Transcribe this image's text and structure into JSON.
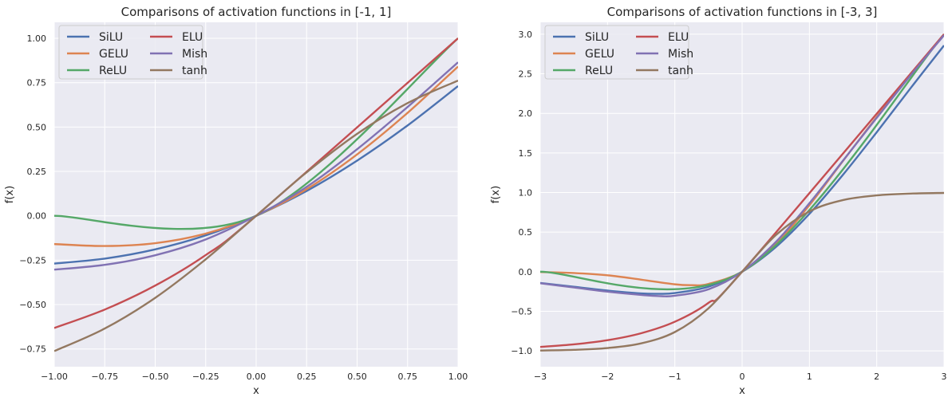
{
  "chart_data": [
    {
      "type": "line",
      "title": "Comparisons of activation functions in [-1, 1]",
      "xlabel": "x",
      "ylabel": "f(x)",
      "xlim": [
        -1,
        1
      ],
      "ylim": [
        -0.85,
        1.09
      ],
      "xticks": [
        "−1.00",
        "−0.75",
        "−0.50",
        "−0.25",
        "0.00",
        "0.25",
        "0.50",
        "0.75",
        "1.00"
      ],
      "yticks": [
        "−0.75",
        "−0.50",
        "−0.25",
        "0.00",
        "0.25",
        "0.50",
        "0.75",
        "1.00"
      ],
      "grid": true,
      "legend_position": "top-left",
      "series": [
        {
          "name": "SiLU",
          "color": "#4c72b0",
          "x": [
            -1,
            -0.75,
            -0.5,
            -0.25,
            0,
            0.25,
            0.5,
            0.75,
            1
          ],
          "y": [
            -0.269,
            -0.241,
            -0.189,
            -0.11,
            0,
            0.14,
            0.311,
            0.509,
            0.731
          ]
        },
        {
          "name": "GELU",
          "color": "#dd8452",
          "x": [
            -1,
            -0.75,
            -0.5,
            -0.25,
            0,
            0.25,
            0.5,
            0.75,
            1
          ],
          "y": [
            -0.159,
            -0.17,
            -0.154,
            -0.1,
            0,
            0.15,
            0.346,
            0.58,
            0.841
          ]
        },
        {
          "name": "ReLU",
          "color": "#55a868",
          "x": [
            -1,
            0,
            1
          ],
          "y": [
            0,
            0,
            1
          ]
        },
        {
          "name": "ELU",
          "color": "#c44e52",
          "x": [
            -1,
            -0.75,
            -0.5,
            -0.25,
            0,
            1
          ],
          "y": [
            -0.632,
            -0.528,
            -0.393,
            -0.221,
            0,
            1
          ]
        },
        {
          "name": "Mish",
          "color": "#8172b3",
          "x": [
            -1,
            -0.75,
            -0.5,
            -0.25,
            0,
            0.25,
            0.5,
            0.75,
            1
          ],
          "y": [
            -0.303,
            -0.276,
            -0.222,
            -0.133,
            0,
            0.163,
            0.375,
            0.613,
            0.865
          ]
        },
        {
          "name": "tanh",
          "color": "#937860",
          "x": [
            -1,
            -0.75,
            -0.5,
            -0.25,
            0,
            0.25,
            0.5,
            0.75,
            1
          ],
          "y": [
            -0.762,
            -0.635,
            -0.462,
            -0.245,
            0,
            0.245,
            0.462,
            0.635,
            0.762
          ]
        }
      ]
    },
    {
      "type": "line",
      "title": "Comparisons of activation functions in [-3, 3]",
      "xlabel": "x",
      "ylabel": "f(x)",
      "xlim": [
        -3,
        3
      ],
      "ylim": [
        -1.2,
        3.15
      ],
      "xticks": [
        "−3",
        "−2",
        "−1",
        "0",
        "1",
        "2",
        "3"
      ],
      "yticks": [
        "−1.0",
        "−0.5",
        "0.0",
        "0.5",
        "1.0",
        "1.5",
        "2.0",
        "2.5",
        "3.0"
      ],
      "grid": true,
      "legend_position": "top-left",
      "series": [
        {
          "name": "SiLU",
          "color": "#4c72b0",
          "x": [
            -3,
            -2.5,
            -2,
            -1.5,
            -1.25,
            -1,
            -0.5,
            0,
            0.5,
            1,
            1.5,
            2,
            2.5,
            3
          ],
          "y": [
            -0.142,
            -0.19,
            -0.238,
            -0.274,
            -0.279,
            -0.269,
            -0.189,
            0,
            0.311,
            0.731,
            1.226,
            1.762,
            2.315,
            2.858
          ]
        },
        {
          "name": "GELU",
          "color": "#dd8452",
          "x": [
            -3,
            -2.5,
            -2,
            -1.5,
            -1,
            -0.75,
            -0.5,
            0,
            0.5,
            1,
            1.5,
            2,
            2.5,
            3
          ],
          "y": [
            -0.004,
            -0.016,
            -0.045,
            -0.1,
            -0.159,
            -0.17,
            -0.154,
            0,
            0.346,
            0.841,
            1.4,
            1.955,
            2.484,
            2.996
          ]
        },
        {
          "name": "ReLU",
          "color": "#55a868",
          "x": [
            -3,
            0,
            3
          ],
          "y": [
            0,
            0,
            3
          ]
        },
        {
          "name": "ELU",
          "color": "#c44e52",
          "x": [
            -3,
            -2.5,
            -2,
            -1.5,
            -1,
            -0.5,
            0,
            3
          ],
          "y": [
            -0.95,
            -0.918,
            -0.865,
            -0.777,
            -0.632,
            -0.393,
            0,
            3
          ]
        },
        {
          "name": "Mish",
          "color": "#8172b3",
          "x": [
            -3,
            -2.5,
            -2,
            -1.5,
            -1.2,
            -1,
            -0.5,
            0,
            0.5,
            1,
            1.5,
            2,
            2.5,
            3
          ],
          "y": [
            -0.146,
            -0.199,
            -0.252,
            -0.293,
            -0.309,
            -0.303,
            -0.222,
            0,
            0.375,
            0.865,
            1.404,
            1.944,
            2.477,
            2.987
          ]
        },
        {
          "name": "tanh",
          "color": "#937860",
          "x": [
            -3,
            -2.5,
            -2,
            -1.5,
            -1,
            -0.5,
            0,
            0.5,
            1,
            1.5,
            2,
            2.5,
            3
          ],
          "y": [
            -0.995,
            -0.987,
            -0.964,
            -0.905,
            -0.762,
            -0.462,
            0,
            0.462,
            0.762,
            0.905,
            0.964,
            0.987,
            0.995
          ]
        }
      ]
    }
  ]
}
